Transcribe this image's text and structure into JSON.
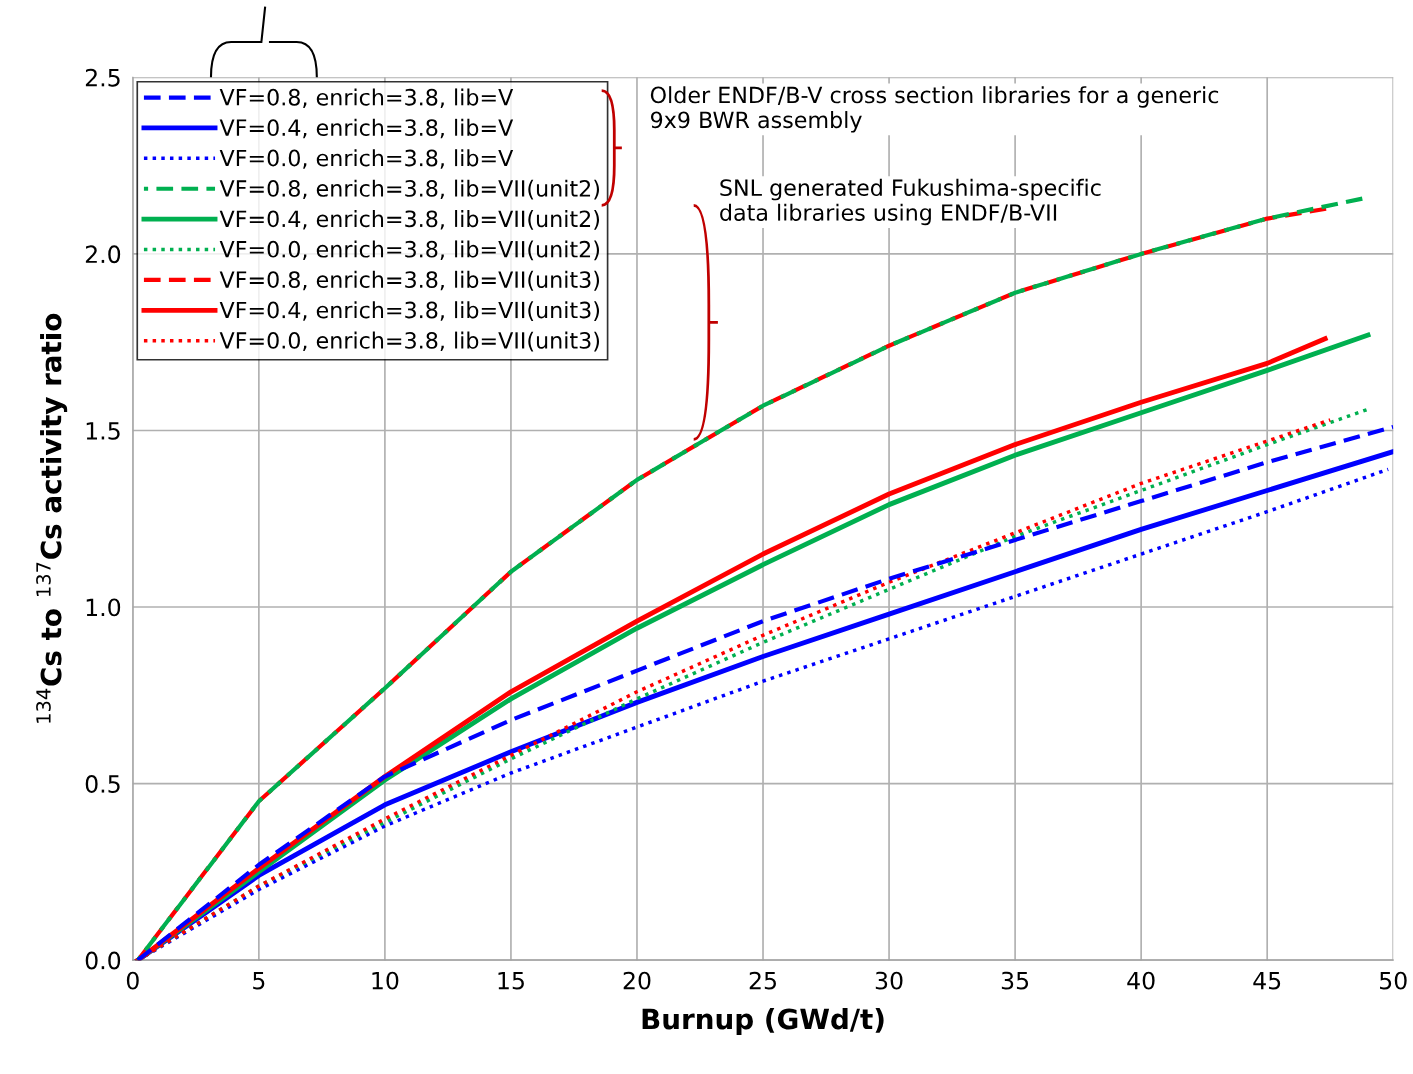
{
  "chart_data": {
    "type": "line",
    "xlabel": "Burnup (GWd/t)",
    "ylabel": "$^{134}$Cs to $^{137}$Cs activity ratio",
    "xlim": [
      0,
      50
    ],
    "xticks": [
      0,
      5,
      10,
      15,
      20,
      25,
      30,
      35,
      40,
      45,
      50
    ],
    "ylim": [
      0,
      2.5
    ],
    "yticks": [
      {
        "value": 0,
        "label": "0.0"
      },
      {
        "value": 0.5,
        "label": "0.5"
      },
      {
        "value": 1,
        "label": "1.0"
      },
      {
        "value": 1.5,
        "label": "1.5"
      },
      {
        "value": 2,
        "label": "2.0"
      },
      {
        "value": 2.5,
        "label": "2.5"
      }
    ],
    "grid": true,
    "legend": "top left",
    "marker": "none",
    "series": [
      {
        "name": "VF=0.8, enrich=3.8, lib=V",
        "color": "#0000ff",
        "line_style": "dashed",
        "x": [
          0.2,
          5,
          10,
          15,
          20,
          25,
          30,
          35,
          40,
          45,
          50
        ],
        "values": [
          0,
          0.27,
          0.52,
          0.68,
          0.82,
          0.96,
          1.08,
          1.19,
          1.3,
          1.41,
          1.51
        ]
      },
      {
        "name": "VF=0.4, enrich=3.8, lib=V",
        "color": "#0000ff",
        "line_style": "solid",
        "x": [
          0.2,
          5,
          10,
          15,
          20,
          25,
          30,
          35,
          40,
          45,
          50
        ],
        "values": [
          0,
          0.24,
          0.44,
          0.59,
          0.73,
          0.86,
          0.98,
          1.1,
          1.22,
          1.33,
          1.44
        ]
      },
      {
        "name": "VF=0.0, enrich=3.8, lib=V",
        "color": "#0000ff",
        "line_style": "dotted",
        "x": [
          0.2,
          5,
          10,
          15,
          20,
          25,
          30,
          35,
          40,
          45,
          49.8
        ],
        "values": [
          0,
          0.2,
          0.38,
          0.53,
          0.66,
          0.79,
          0.91,
          1.03,
          1.15,
          1.27,
          1.39
        ]
      },
      {
        "name": "VF=0.8, enrich=3.8, lib=VII(unit2)",
        "color": "#00b050",
        "line_style": "dashed",
        "x": [
          0.2,
          5,
          10,
          15,
          20,
          25,
          30,
          35,
          40,
          45,
          49
        ],
        "values": [
          0,
          0.45,
          0.77,
          1.1,
          1.36,
          1.57,
          1.74,
          1.89,
          2.0,
          2.1,
          2.16
        ]
      },
      {
        "name": "VF=0.4, enrich=3.8, lib=VII(unit2)",
        "color": "#00b050",
        "line_style": "solid",
        "x": [
          0.2,
          5,
          10,
          15,
          20,
          25,
          30,
          35,
          40,
          45,
          49
        ],
        "values": [
          0,
          0.25,
          0.51,
          0.74,
          0.94,
          1.12,
          1.29,
          1.43,
          1.55,
          1.67,
          1.77
        ]
      },
      {
        "name": "VF=0.0, enrich=3.8, lib=VII(unit2)",
        "color": "#00b050",
        "line_style": "dotted",
        "x": [
          0.2,
          5,
          10,
          15,
          20,
          25,
          30,
          35,
          40,
          45,
          49
        ],
        "values": [
          0,
          0.21,
          0.39,
          0.57,
          0.74,
          0.9,
          1.05,
          1.2,
          1.33,
          1.46,
          1.56
        ]
      },
      {
        "name": "VF=0.8, enrich=3.8, lib=VII(unit3)",
        "color": "#ff0000",
        "line_style": "dashed",
        "x": [
          0.2,
          5,
          10,
          15,
          20,
          25,
          30,
          35,
          40,
          45,
          47.5
        ],
        "values": [
          0,
          0.45,
          0.77,
          1.1,
          1.36,
          1.57,
          1.74,
          1.89,
          2.0,
          2.1,
          2.13
        ]
      },
      {
        "name": "VF=0.4, enrich=3.8, lib=VII(unit3)",
        "color": "#ff0000",
        "line_style": "solid",
        "x": [
          0.2,
          5,
          10,
          15,
          20,
          25,
          30,
          35,
          40,
          45,
          47.3
        ],
        "values": [
          0,
          0.26,
          0.52,
          0.76,
          0.96,
          1.15,
          1.32,
          1.46,
          1.58,
          1.69,
          1.76
        ]
      },
      {
        "name": "VF=0.0, enrich=3.8, lib=VII(unit3)",
        "color": "#ff0000",
        "line_style": "dotted",
        "x": [
          0.2,
          5,
          10,
          15,
          20,
          25,
          30,
          35,
          40,
          45,
          47.5
        ],
        "values": [
          0,
          0.21,
          0.4,
          0.58,
          0.76,
          0.92,
          1.07,
          1.21,
          1.35,
          1.47,
          1.53
        ]
      }
    ],
    "annotations": [
      "Older ENDF/B-V cross section libraries for a generic\n9x9 BWR assembly",
      "SNL generated Fukushima-specific\ndata libraries using ENDF/B-VII"
    ]
  }
}
